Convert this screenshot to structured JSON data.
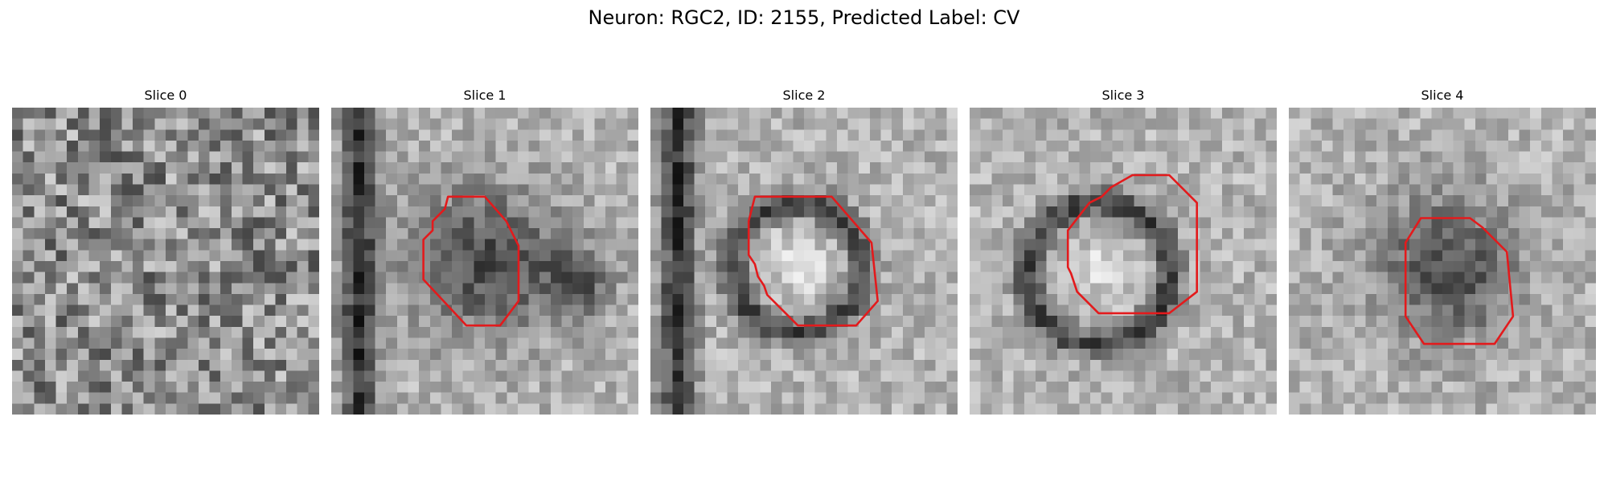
{
  "figure": {
    "title": "Neuron: RGC2, ID: 2155, Predicted Label: CV"
  },
  "grid_size": 28,
  "contour_color": "#e31a1c",
  "slices": [
    {
      "title": "Slice 0",
      "pattern": "noise",
      "contour": null
    },
    {
      "title": "Slice 1",
      "pattern": "dark-blob",
      "contour": "octagon"
    },
    {
      "title": "Slice 2",
      "pattern": "ring-light-center",
      "contour": "octagon"
    },
    {
      "title": "Slice 3",
      "pattern": "ring-light-center",
      "contour": "octagon"
    },
    {
      "title": "Slice 4",
      "pattern": "dark-blob",
      "contour": "octagon"
    }
  ]
}
